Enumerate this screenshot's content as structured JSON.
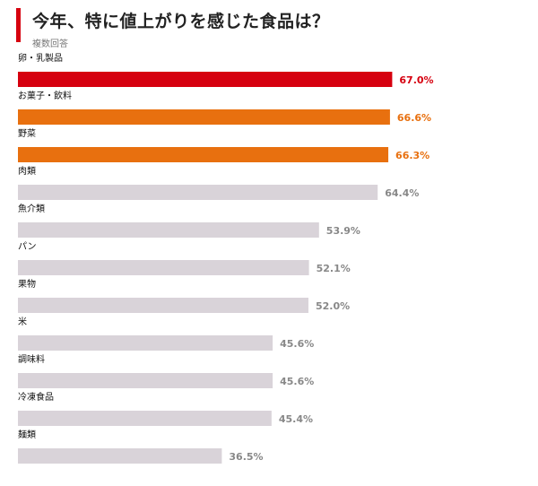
{
  "title": "今年、特に値上がりを感じた食品は？",
  "subtitle": "複数回答",
  "colors": {
    "accent": "#d6000f",
    "highlight_top": "#d6000f",
    "highlight_second": "#e8700f",
    "default_bar": "#d9d3d9",
    "default_value_text": "#888888"
  },
  "chart_data": {
    "type": "bar",
    "orientation": "horizontal",
    "unit": "%",
    "title": "今年、特に値上がりを感じた食品は？",
    "subtitle": "複数回答",
    "categories": [
      "卵・乳製品",
      "お菓子・飲料",
      "野菜",
      "肉類",
      "魚介類",
      "パン",
      "果物",
      "米",
      "調味料",
      "冷凍食品",
      "麺類"
    ],
    "values": [
      67.0,
      66.6,
      66.3,
      64.4,
      53.9,
      52.1,
      52.0,
      45.6,
      45.6,
      45.4,
      36.5
    ],
    "value_labels": [
      "67.0%",
      "66.6%",
      "66.3%",
      "64.4%",
      "53.9%",
      "52.1%",
      "52.0%",
      "45.6%",
      "45.6%",
      "45.4%",
      "36.5%"
    ],
    "bar_colors": [
      "#d6000f",
      "#e8700f",
      "#e8700f",
      "#d9d3d9",
      "#d9d3d9",
      "#d9d3d9",
      "#d9d3d9",
      "#d9d3d9",
      "#d9d3d9",
      "#d9d3d9",
      "#d9d3d9"
    ],
    "label_colors": [
      "#d6000f",
      "#e8700f",
      "#e8700f",
      "#888888",
      "#888888",
      "#888888",
      "#888888",
      "#888888",
      "#888888",
      "#888888",
      "#888888"
    ],
    "xlim": [
      0,
      100
    ],
    "grid": false,
    "legend": "none"
  }
}
